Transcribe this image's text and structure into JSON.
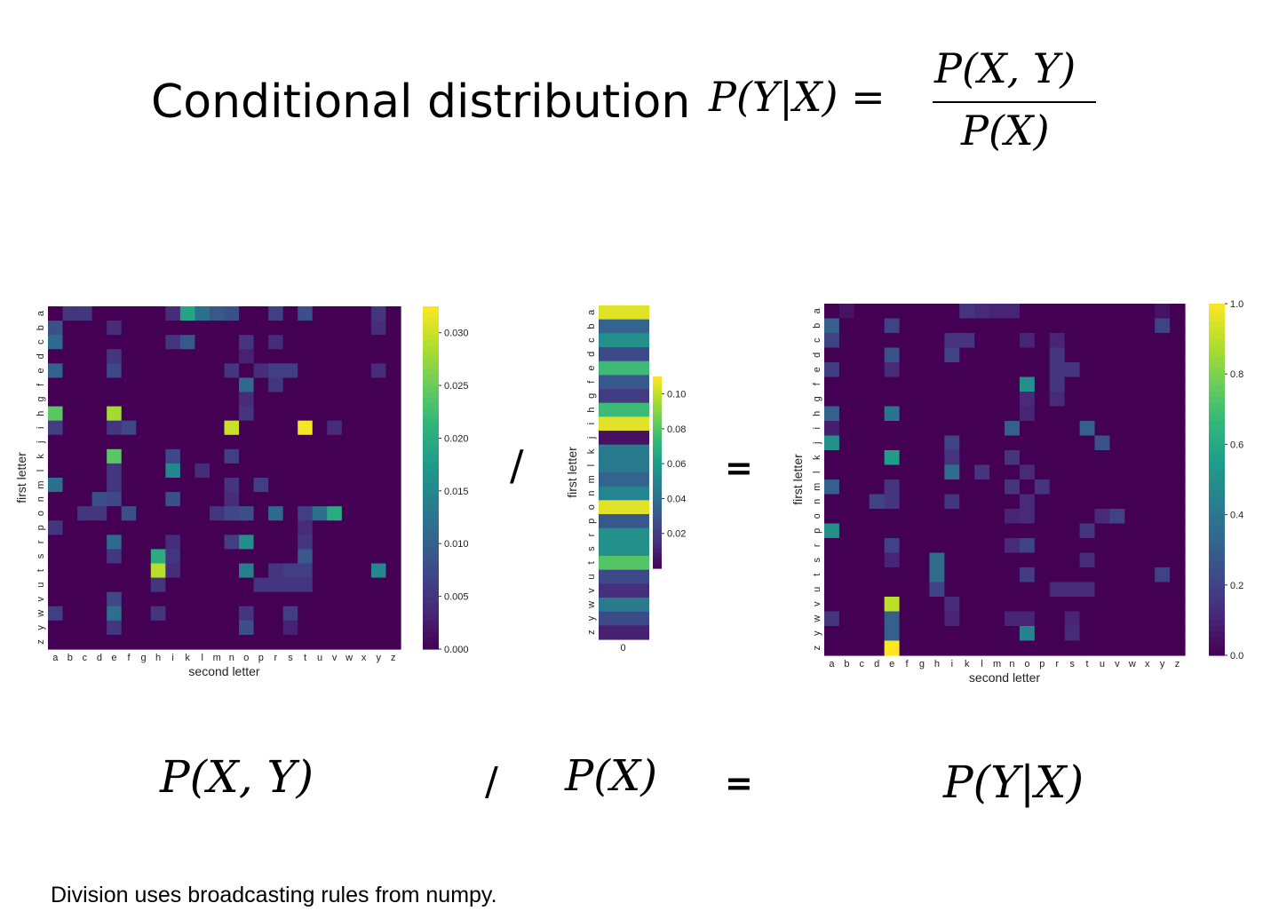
{
  "title": "Conditional distribution",
  "formula": {
    "lhs": "P(Y|X) =",
    "numerator": "P(X, Y)",
    "denominator": "P(X)"
  },
  "bottom": {
    "joint": "P(X, Y)",
    "divide": "/",
    "marginal": "P(X)",
    "equals": "=",
    "conditional": "P(Y|X)"
  },
  "between": {
    "divide": "/",
    "equals": "="
  },
  "note": "Division uses broadcasting rules from numpy.",
  "colors": {
    "viridis": [
      "#440154",
      "#482878",
      "#3e4989",
      "#31688e",
      "#26828e",
      "#1f9e89",
      "#35b779",
      "#6ece58",
      "#b5de2b",
      "#fde725"
    ]
  },
  "chart_data": [
    {
      "type": "heatmap",
      "name": "joint",
      "xlabel": "second letter",
      "ylabel": "first letter",
      "x_ticks": [
        "a",
        "b",
        "c",
        "d",
        "e",
        "f",
        "g",
        "h",
        "i",
        "k",
        "l",
        "m",
        "n",
        "o",
        "p",
        "r",
        "s",
        "t",
        "u",
        "v",
        "w",
        "x",
        "y",
        "z"
      ],
      "y_ticks": [
        "a",
        "b",
        "c",
        "d",
        "e",
        "f",
        "g",
        "h",
        "i",
        "j",
        "k",
        "l",
        "m",
        "n",
        "o",
        "p",
        "r",
        "s",
        "t",
        "u",
        "v",
        "w",
        "y",
        "z"
      ],
      "colorbar": {
        "min": 0,
        "max": 0.0325,
        "ticks": [
          "0.000",
          "0.005",
          "0.010",
          "0.015",
          "0.020",
          "0.025",
          "0.030"
        ],
        "tick_values": [
          0,
          0.005,
          0.01,
          0.015,
          0.02,
          0.025,
          0.03
        ]
      },
      "cells": [
        {
          "r": 0,
          "c": 1,
          "v": 0.005
        },
        {
          "r": 0,
          "c": 2,
          "v": 0.005
        },
        {
          "r": 0,
          "c": 8,
          "v": 0.004
        },
        {
          "r": 0,
          "c": 9,
          "v": 0.019
        },
        {
          "r": 0,
          "c": 10,
          "v": 0.012
        },
        {
          "r": 0,
          "c": 11,
          "v": 0.009
        },
        {
          "r": 0,
          "c": 12,
          "v": 0.008
        },
        {
          "r": 0,
          "c": 15,
          "v": 0.006
        },
        {
          "r": 0,
          "c": 17,
          "v": 0.008
        },
        {
          "r": 0,
          "c": 22,
          "v": 0.005
        },
        {
          "r": 1,
          "c": 0,
          "v": 0.008
        },
        {
          "r": 1,
          "c": 4,
          "v": 0.004
        },
        {
          "r": 1,
          "c": 22,
          "v": 0.004
        },
        {
          "r": 2,
          "c": 0,
          "v": 0.011
        },
        {
          "r": 2,
          "c": 8,
          "v": 0.005
        },
        {
          "r": 2,
          "c": 9,
          "v": 0.009
        },
        {
          "r": 2,
          "c": 13,
          "v": 0.005
        },
        {
          "r": 2,
          "c": 15,
          "v": 0.004
        },
        {
          "r": 3,
          "c": 4,
          "v": 0.005
        },
        {
          "r": 3,
          "c": 13,
          "v": 0.003
        },
        {
          "r": 4,
          "c": 0,
          "v": 0.01
        },
        {
          "r": 4,
          "c": 4,
          "v": 0.007
        },
        {
          "r": 4,
          "c": 12,
          "v": 0.005
        },
        {
          "r": 4,
          "c": 14,
          "v": 0.004
        },
        {
          "r": 4,
          "c": 15,
          "v": 0.006
        },
        {
          "r": 4,
          "c": 16,
          "v": 0.006
        },
        {
          "r": 4,
          "c": 22,
          "v": 0.004
        },
        {
          "r": 5,
          "c": 13,
          "v": 0.011
        },
        {
          "r": 5,
          "c": 15,
          "v": 0.005
        },
        {
          "r": 6,
          "c": 13,
          "v": 0.004
        },
        {
          "r": 7,
          "c": 0,
          "v": 0.024
        },
        {
          "r": 7,
          "c": 4,
          "v": 0.028
        },
        {
          "r": 7,
          "c": 13,
          "v": 0.005
        },
        {
          "r": 8,
          "c": 0,
          "v": 0.006
        },
        {
          "r": 8,
          "c": 4,
          "v": 0.005
        },
        {
          "r": 8,
          "c": 5,
          "v": 0.007
        },
        {
          "r": 8,
          "c": 12,
          "v": 0.03
        },
        {
          "r": 8,
          "c": 17,
          "v": 0.032
        },
        {
          "r": 8,
          "c": 19,
          "v": 0.004
        },
        {
          "r": 10,
          "c": 4,
          "v": 0.024
        },
        {
          "r": 10,
          "c": 8,
          "v": 0.007
        },
        {
          "r": 10,
          "c": 12,
          "v": 0.006
        },
        {
          "r": 11,
          "c": 4,
          "v": 0.005
        },
        {
          "r": 11,
          "c": 8,
          "v": 0.015
        },
        {
          "r": 11,
          "c": 10,
          "v": 0.004
        },
        {
          "r": 12,
          "c": 0,
          "v": 0.012
        },
        {
          "r": 12,
          "c": 4,
          "v": 0.005
        },
        {
          "r": 12,
          "c": 12,
          "v": 0.005
        },
        {
          "r": 12,
          "c": 14,
          "v": 0.006
        },
        {
          "r": 13,
          "c": 3,
          "v": 0.008
        },
        {
          "r": 13,
          "c": 4,
          "v": 0.007
        },
        {
          "r": 13,
          "c": 8,
          "v": 0.008
        },
        {
          "r": 13,
          "c": 12,
          "v": 0.004
        },
        {
          "r": 14,
          "c": 2,
          "v": 0.005
        },
        {
          "r": 14,
          "c": 3,
          "v": 0.005
        },
        {
          "r": 14,
          "c": 5,
          "v": 0.008
        },
        {
          "r": 14,
          "c": 11,
          "v": 0.005
        },
        {
          "r": 14,
          "c": 12,
          "v": 0.007
        },
        {
          "r": 14,
          "c": 13,
          "v": 0.008
        },
        {
          "r": 14,
          "c": 15,
          "v": 0.011
        },
        {
          "r": 14,
          "c": 17,
          "v": 0.006
        },
        {
          "r": 14,
          "c": 18,
          "v": 0.012
        },
        {
          "r": 14,
          "c": 19,
          "v": 0.02
        },
        {
          "r": 15,
          "c": 0,
          "v": 0.005
        },
        {
          "r": 15,
          "c": 17,
          "v": 0.004
        },
        {
          "r": 16,
          "c": 4,
          "v": 0.011
        },
        {
          "r": 16,
          "c": 8,
          "v": 0.004
        },
        {
          "r": 16,
          "c": 12,
          "v": 0.006
        },
        {
          "r": 16,
          "c": 13,
          "v": 0.016
        },
        {
          "r": 16,
          "c": 17,
          "v": 0.005
        },
        {
          "r": 17,
          "c": 4,
          "v": 0.005
        },
        {
          "r": 17,
          "c": 7,
          "v": 0.02
        },
        {
          "r": 17,
          "c": 8,
          "v": 0.005
        },
        {
          "r": 17,
          "c": 17,
          "v": 0.009
        },
        {
          "r": 18,
          "c": 7,
          "v": 0.029
        },
        {
          "r": 18,
          "c": 8,
          "v": 0.004
        },
        {
          "r": 18,
          "c": 13,
          "v": 0.014
        },
        {
          "r": 18,
          "c": 15,
          "v": 0.005
        },
        {
          "r": 18,
          "c": 16,
          "v": 0.006
        },
        {
          "r": 18,
          "c": 17,
          "v": 0.006
        },
        {
          "r": 18,
          "c": 22,
          "v": 0.015
        },
        {
          "r": 19,
          "c": 7,
          "v": 0.005
        },
        {
          "r": 19,
          "c": 14,
          "v": 0.005
        },
        {
          "r": 19,
          "c": 15,
          "v": 0.005
        },
        {
          "r": 19,
          "c": 16,
          "v": 0.005
        },
        {
          "r": 19,
          "c": 17,
          "v": 0.005
        },
        {
          "r": 20,
          "c": 4,
          "v": 0.007
        },
        {
          "r": 21,
          "c": 0,
          "v": 0.006
        },
        {
          "r": 21,
          "c": 4,
          "v": 0.012
        },
        {
          "r": 21,
          "c": 7,
          "v": 0.005
        },
        {
          "r": 21,
          "c": 13,
          "v": 0.005
        },
        {
          "r": 21,
          "c": 16,
          "v": 0.006
        },
        {
          "r": 22,
          "c": 4,
          "v": 0.005
        },
        {
          "r": 22,
          "c": 13,
          "v": 0.008
        },
        {
          "r": 22,
          "c": 16,
          "v": 0.003
        }
      ]
    },
    {
      "type": "heatmap",
      "name": "marginal",
      "ylabel": "first letter",
      "x_ticks": [
        "0"
      ],
      "y_ticks": [
        "a",
        "b",
        "c",
        "d",
        "e",
        "f",
        "g",
        "h",
        "i",
        "j",
        "k",
        "l",
        "m",
        "n",
        "o",
        "p",
        "r",
        "s",
        "t",
        "u",
        "v",
        "w",
        "y",
        "z"
      ],
      "colorbar": {
        "min": 0,
        "max": 0.11,
        "ticks": [
          "0.02",
          "0.04",
          "0.06",
          "0.08",
          "0.10"
        ],
        "tick_values": [
          0.02,
          0.04,
          0.06,
          0.08,
          0.1
        ]
      },
      "values": [
        0.105,
        0.035,
        0.055,
        0.025,
        0.075,
        0.03,
        0.02,
        0.075,
        0.105,
        0.005,
        0.045,
        0.045,
        0.035,
        0.05,
        0.105,
        0.03,
        0.055,
        0.055,
        0.08,
        0.025,
        0.015,
        0.045,
        0.025,
        0.01
      ]
    },
    {
      "type": "heatmap",
      "name": "conditional",
      "xlabel": "second letter",
      "ylabel": "first letter",
      "x_ticks": [
        "a",
        "b",
        "c",
        "d",
        "e",
        "f",
        "g",
        "h",
        "i",
        "k",
        "l",
        "m",
        "n",
        "o",
        "p",
        "r",
        "s",
        "t",
        "u",
        "v",
        "w",
        "x",
        "y",
        "z"
      ],
      "y_ticks": [
        "a",
        "b",
        "c",
        "d",
        "e",
        "f",
        "g",
        "h",
        "i",
        "j",
        "k",
        "l",
        "m",
        "n",
        "o",
        "p",
        "r",
        "s",
        "t",
        "u",
        "v",
        "w",
        "y",
        "z"
      ],
      "colorbar": {
        "min": 0,
        "max": 1.0,
        "ticks": [
          "0.0",
          "0.2",
          "0.4",
          "0.6",
          "0.8",
          "1.0"
        ],
        "tick_values": [
          0,
          0.2,
          0.4,
          0.6,
          0.8,
          1.0
        ]
      },
      "cells": [
        {
          "r": 0,
          "c": 1,
          "v": 0.05
        },
        {
          "r": 0,
          "c": 9,
          "v": 0.15
        },
        {
          "r": 0,
          "c": 10,
          "v": 0.12
        },
        {
          "r": 0,
          "c": 11,
          "v": 0.1
        },
        {
          "r": 0,
          "c": 12,
          "v": 0.1
        },
        {
          "r": 0,
          "c": 22,
          "v": 0.05
        },
        {
          "r": 1,
          "c": 0,
          "v": 0.3
        },
        {
          "r": 1,
          "c": 4,
          "v": 0.2
        },
        {
          "r": 1,
          "c": 22,
          "v": 0.2
        },
        {
          "r": 2,
          "c": 0,
          "v": 0.2
        },
        {
          "r": 2,
          "c": 8,
          "v": 0.15
        },
        {
          "r": 2,
          "c": 9,
          "v": 0.15
        },
        {
          "r": 2,
          "c": 13,
          "v": 0.1
        },
        {
          "r": 2,
          "c": 15,
          "v": 0.1
        },
        {
          "r": 3,
          "c": 4,
          "v": 0.25
        },
        {
          "r": 3,
          "c": 8,
          "v": 0.2
        },
        {
          "r": 3,
          "c": 15,
          "v": 0.15
        },
        {
          "r": 4,
          "c": 0,
          "v": 0.18
        },
        {
          "r": 4,
          "c": 4,
          "v": 0.12
        },
        {
          "r": 4,
          "c": 15,
          "v": 0.15
        },
        {
          "r": 4,
          "c": 16,
          "v": 0.15
        },
        {
          "r": 5,
          "c": 13,
          "v": 0.5
        },
        {
          "r": 5,
          "c": 15,
          "v": 0.15
        },
        {
          "r": 6,
          "c": 13,
          "v": 0.12
        },
        {
          "r": 6,
          "c": 15,
          "v": 0.12
        },
        {
          "r": 7,
          "c": 0,
          "v": 0.3
        },
        {
          "r": 7,
          "c": 4,
          "v": 0.38
        },
        {
          "r": 7,
          "c": 13,
          "v": 0.1
        },
        {
          "r": 8,
          "c": 0,
          "v": 0.08
        },
        {
          "r": 8,
          "c": 12,
          "v": 0.3
        },
        {
          "r": 8,
          "c": 17,
          "v": 0.3
        },
        {
          "r": 9,
          "c": 0,
          "v": 0.5
        },
        {
          "r": 9,
          "c": 8,
          "v": 0.2
        },
        {
          "r": 9,
          "c": 18,
          "v": 0.25
        },
        {
          "r": 10,
          "c": 4,
          "v": 0.55
        },
        {
          "r": 10,
          "c": 8,
          "v": 0.15
        },
        {
          "r": 10,
          "c": 12,
          "v": 0.15
        },
        {
          "r": 11,
          "c": 8,
          "v": 0.35
        },
        {
          "r": 11,
          "c": 10,
          "v": 0.15
        },
        {
          "r": 11,
          "c": 13,
          "v": 0.12
        },
        {
          "r": 12,
          "c": 0,
          "v": 0.3
        },
        {
          "r": 12,
          "c": 4,
          "v": 0.15
        },
        {
          "r": 12,
          "c": 12,
          "v": 0.15
        },
        {
          "r": 12,
          "c": 14,
          "v": 0.15
        },
        {
          "r": 13,
          "c": 3,
          "v": 0.2
        },
        {
          "r": 13,
          "c": 4,
          "v": 0.15
        },
        {
          "r": 13,
          "c": 8,
          "v": 0.15
        },
        {
          "r": 13,
          "c": 13,
          "v": 0.12
        },
        {
          "r": 14,
          "c": 12,
          "v": 0.1
        },
        {
          "r": 14,
          "c": 13,
          "v": 0.12
        },
        {
          "r": 14,
          "c": 18,
          "v": 0.12
        },
        {
          "r": 14,
          "c": 19,
          "v": 0.2
        },
        {
          "r": 15,
          "c": 0,
          "v": 0.5
        },
        {
          "r": 15,
          "c": 17,
          "v": 0.15
        },
        {
          "r": 16,
          "c": 4,
          "v": 0.2
        },
        {
          "r": 16,
          "c": 12,
          "v": 0.12
        },
        {
          "r": 16,
          "c": 13,
          "v": 0.2
        },
        {
          "r": 17,
          "c": 4,
          "v": 0.1
        },
        {
          "r": 17,
          "c": 7,
          "v": 0.35
        },
        {
          "r": 17,
          "c": 17,
          "v": 0.12
        },
        {
          "r": 18,
          "c": 7,
          "v": 0.35
        },
        {
          "r": 18,
          "c": 13,
          "v": 0.18
        },
        {
          "r": 18,
          "c": 22,
          "v": 0.2
        },
        {
          "r": 19,
          "c": 7,
          "v": 0.2
        },
        {
          "r": 19,
          "c": 15,
          "v": 0.12
        },
        {
          "r": 19,
          "c": 16,
          "v": 0.12
        },
        {
          "r": 19,
          "c": 17,
          "v": 0.12
        },
        {
          "r": 20,
          "c": 4,
          "v": 0.9
        },
        {
          "r": 20,
          "c": 8,
          "v": 0.12
        },
        {
          "r": 21,
          "c": 0,
          "v": 0.15
        },
        {
          "r": 21,
          "c": 4,
          "v": 0.3
        },
        {
          "r": 21,
          "c": 8,
          "v": 0.1
        },
        {
          "r": 21,
          "c": 12,
          "v": 0.1
        },
        {
          "r": 21,
          "c": 13,
          "v": 0.1
        },
        {
          "r": 21,
          "c": 16,
          "v": 0.1
        },
        {
          "r": 22,
          "c": 4,
          "v": 0.3
        },
        {
          "r": 22,
          "c": 13,
          "v": 0.45
        },
        {
          "r": 22,
          "c": 16,
          "v": 0.12
        },
        {
          "r": 23,
          "c": 4,
          "v": 1.0
        }
      ]
    }
  ]
}
